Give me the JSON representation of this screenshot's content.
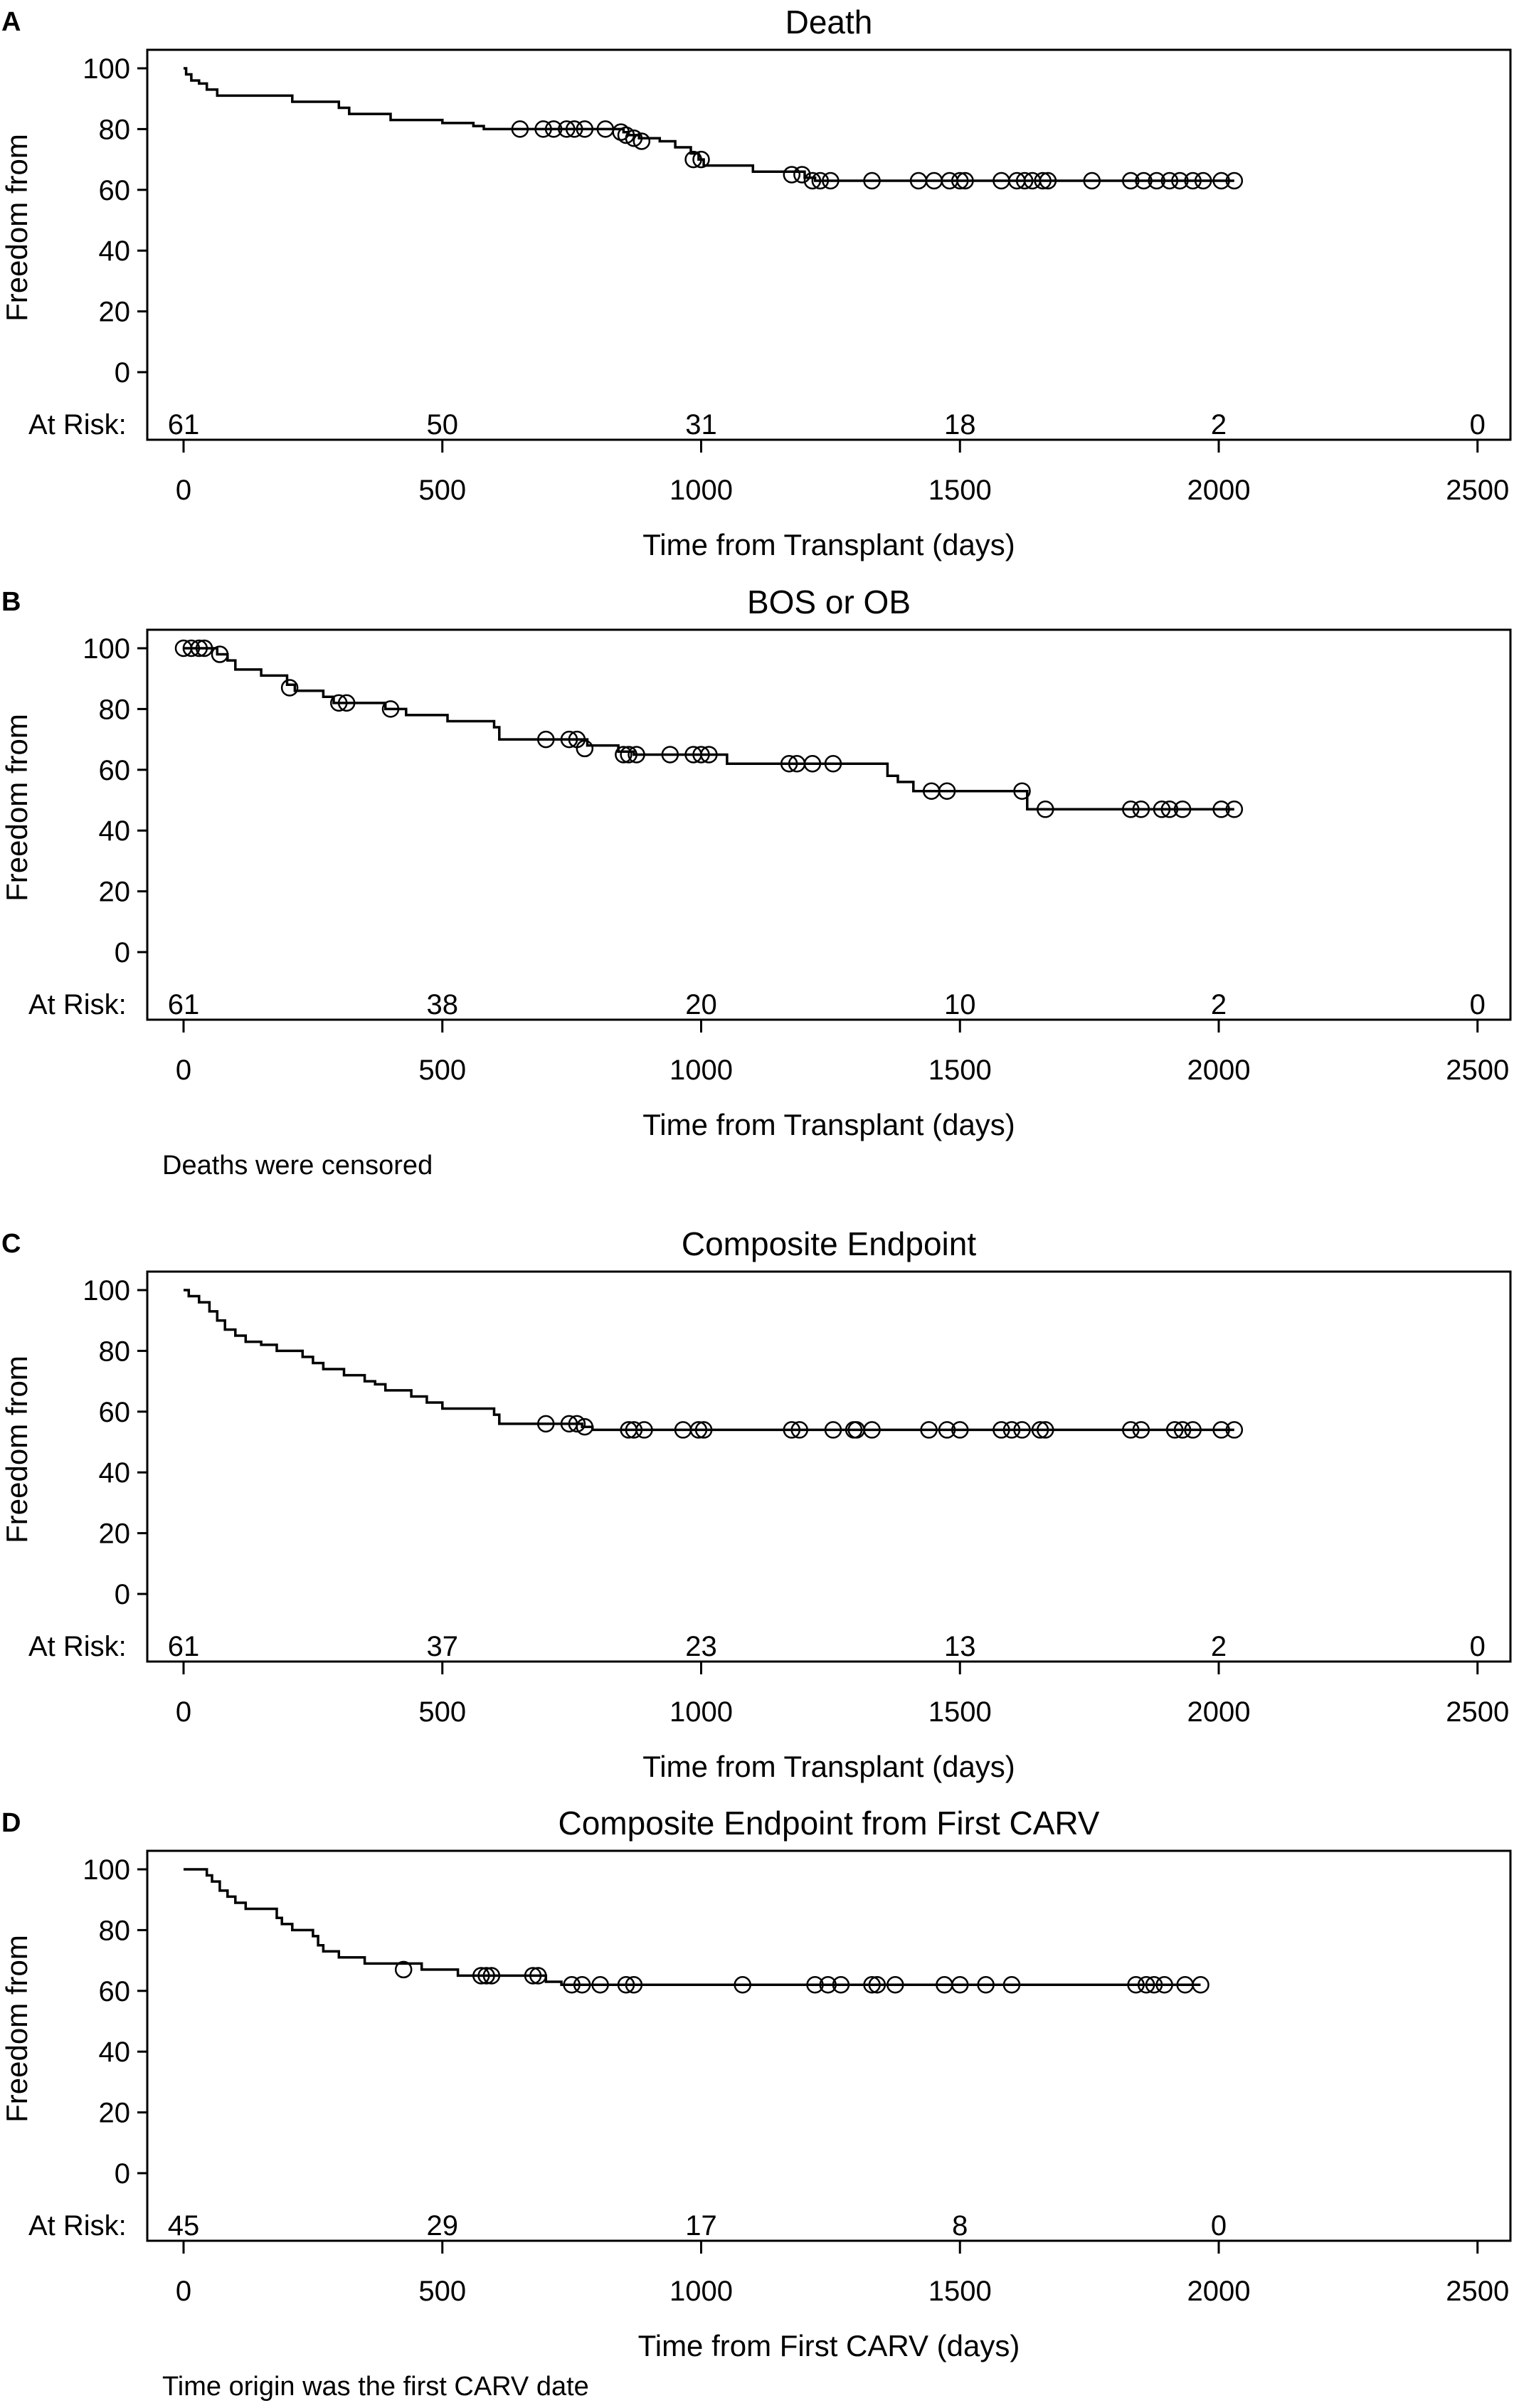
{
  "chart_data": [
    {
      "type": "line",
      "panel_letter": "A",
      "title": "Death",
      "ylabel": "Freedom from",
      "xlabel": "Time from Transplant (days)",
      "footnote": "",
      "at_risk_label": "At Risk:",
      "at_risk": [
        {
          "x": 0,
          "n": "61"
        },
        {
          "x": 500,
          "n": "50"
        },
        {
          "x": 1000,
          "n": "31"
        },
        {
          "x": 1500,
          "n": "18"
        },
        {
          "x": 2000,
          "n": "2"
        },
        {
          "x": 2500,
          "n": "0"
        }
      ],
      "xlim": [
        0,
        2500
      ],
      "ylim": [
        0,
        100
      ],
      "xticks": [
        0,
        500,
        1000,
        1500,
        2000,
        2500
      ],
      "yticks": [
        0,
        20,
        40,
        60,
        80,
        100
      ],
      "steps": [
        [
          0,
          100
        ],
        [
          5,
          98
        ],
        [
          15,
          96
        ],
        [
          30,
          95
        ],
        [
          45,
          93
        ],
        [
          65,
          91
        ],
        [
          210,
          89
        ],
        [
          300,
          87
        ],
        [
          320,
          85
        ],
        [
          400,
          83
        ],
        [
          500,
          82
        ],
        [
          560,
          81
        ],
        [
          580,
          80
        ],
        [
          640,
          80
        ],
        [
          850,
          79
        ],
        [
          860,
          78
        ],
        [
          880,
          77
        ],
        [
          920,
          76
        ],
        [
          950,
          74
        ],
        [
          980,
          72
        ],
        [
          995,
          70
        ],
        [
          1005,
          68
        ],
        [
          1100,
          66
        ],
        [
          1200,
          64
        ],
        [
          1220,
          63
        ],
        [
          2030,
          63
        ]
      ],
      "censored": [
        [
          650,
          80
        ],
        [
          695,
          80
        ],
        [
          715,
          80
        ],
        [
          740,
          80
        ],
        [
          755,
          80
        ],
        [
          775,
          80
        ],
        [
          815,
          80
        ],
        [
          845,
          79
        ],
        [
          855,
          78
        ],
        [
          870,
          77
        ],
        [
          885,
          76
        ],
        [
          985,
          70
        ],
        [
          1000,
          70
        ],
        [
          1175,
          65
        ],
        [
          1195,
          65
        ],
        [
          1215,
          63
        ],
        [
          1230,
          63
        ],
        [
          1250,
          63
        ],
        [
          1330,
          63
        ],
        [
          1420,
          63
        ],
        [
          1450,
          63
        ],
        [
          1480,
          63
        ],
        [
          1500,
          63
        ],
        [
          1510,
          63
        ],
        [
          1580,
          63
        ],
        [
          1610,
          63
        ],
        [
          1625,
          63
        ],
        [
          1640,
          63
        ],
        [
          1660,
          63
        ],
        [
          1670,
          63
        ],
        [
          1755,
          63
        ],
        [
          1830,
          63
        ],
        [
          1855,
          63
        ],
        [
          1880,
          63
        ],
        [
          1905,
          63
        ],
        [
          1925,
          63
        ],
        [
          1950,
          63
        ],
        [
          1970,
          63
        ],
        [
          2005,
          63
        ],
        [
          2030,
          63
        ]
      ]
    },
    {
      "type": "line",
      "panel_letter": "B",
      "title": "BOS or OB",
      "ylabel": "Freedom from",
      "xlabel": "Time from Transplant (days)",
      "footnote": "Deaths were censored",
      "at_risk_label": "At Risk:",
      "at_risk": [
        {
          "x": 0,
          "n": "61"
        },
        {
          "x": 500,
          "n": "38"
        },
        {
          "x": 1000,
          "n": "20"
        },
        {
          "x": 1500,
          "n": "10"
        },
        {
          "x": 2000,
          "n": "2"
        },
        {
          "x": 2500,
          "n": "0"
        }
      ],
      "xlim": [
        0,
        2500
      ],
      "ylim": [
        0,
        100
      ],
      "xticks": [
        0,
        500,
        1000,
        1500,
        2000,
        2500
      ],
      "yticks": [
        0,
        20,
        40,
        60,
        80,
        100
      ],
      "steps": [
        [
          0,
          100
        ],
        [
          65,
          98
        ],
        [
          85,
          96
        ],
        [
          100,
          93
        ],
        [
          150,
          91
        ],
        [
          200,
          88
        ],
        [
          215,
          86
        ],
        [
          270,
          84
        ],
        [
          290,
          82
        ],
        [
          390,
          80
        ],
        [
          430,
          78
        ],
        [
          510,
          76
        ],
        [
          600,
          74
        ],
        [
          610,
          70
        ],
        [
          780,
          68
        ],
        [
          840,
          66
        ],
        [
          870,
          65
        ],
        [
          1050,
          62
        ],
        [
          1360,
          58
        ],
        [
          1380,
          56
        ],
        [
          1410,
          53
        ],
        [
          1630,
          47
        ],
        [
          2030,
          47
        ]
      ],
      "censored": [
        [
          0,
          100
        ],
        [
          15,
          100
        ],
        [
          30,
          100
        ],
        [
          40,
          100
        ],
        [
          70,
          98
        ],
        [
          205,
          87
        ],
        [
          300,
          82
        ],
        [
          315,
          82
        ],
        [
          400,
          80
        ],
        [
          700,
          70
        ],
        [
          745,
          70
        ],
        [
          760,
          70
        ],
        [
          775,
          67
        ],
        [
          850,
          65
        ],
        [
          860,
          65
        ],
        [
          875,
          65
        ],
        [
          940,
          65
        ],
        [
          985,
          65
        ],
        [
          1000,
          65
        ],
        [
          1015,
          65
        ],
        [
          1170,
          62
        ],
        [
          1185,
          62
        ],
        [
          1215,
          62
        ],
        [
          1255,
          62
        ],
        [
          1445,
          53
        ],
        [
          1475,
          53
        ],
        [
          1620,
          53
        ],
        [
          1665,
          47
        ],
        [
          1830,
          47
        ],
        [
          1850,
          47
        ],
        [
          1890,
          47
        ],
        [
          1905,
          47
        ],
        [
          1930,
          47
        ],
        [
          2005,
          47
        ],
        [
          2030,
          47
        ]
      ]
    },
    {
      "type": "line",
      "panel_letter": "C",
      "title": "Composite Endpoint",
      "ylabel": "Freedom from",
      "xlabel": "Time from Transplant (days)",
      "footnote": "",
      "at_risk_label": "At Risk:",
      "at_risk": [
        {
          "x": 0,
          "n": "61"
        },
        {
          "x": 500,
          "n": "37"
        },
        {
          "x": 1000,
          "n": "23"
        },
        {
          "x": 1500,
          "n": "13"
        },
        {
          "x": 2000,
          "n": "2"
        },
        {
          "x": 2500,
          "n": "0"
        }
      ],
      "xlim": [
        0,
        2500
      ],
      "ylim": [
        0,
        100
      ],
      "xticks": [
        0,
        500,
        1000,
        1500,
        2000,
        2500
      ],
      "yticks": [
        0,
        20,
        40,
        60,
        80,
        100
      ],
      "steps": [
        [
          0,
          100
        ],
        [
          10,
          98
        ],
        [
          30,
          96
        ],
        [
          50,
          93
        ],
        [
          65,
          90
        ],
        [
          80,
          87
        ],
        [
          100,
          85
        ],
        [
          120,
          83
        ],
        [
          150,
          82
        ],
        [
          180,
          80
        ],
        [
          230,
          78
        ],
        [
          250,
          76
        ],
        [
          270,
          74
        ],
        [
          310,
          72
        ],
        [
          350,
          70
        ],
        [
          370,
          69
        ],
        [
          390,
          67
        ],
        [
          440,
          65
        ],
        [
          470,
          63
        ],
        [
          500,
          61
        ],
        [
          600,
          59
        ],
        [
          610,
          56
        ],
        [
          770,
          55
        ],
        [
          790,
          54
        ],
        [
          2030,
          54
        ]
      ],
      "censored": [
        [
          700,
          56
        ],
        [
          745,
          56
        ],
        [
          760,
          56
        ],
        [
          775,
          55
        ],
        [
          860,
          54
        ],
        [
          870,
          54
        ],
        [
          890,
          54
        ],
        [
          965,
          54
        ],
        [
          995,
          54
        ],
        [
          1005,
          54
        ],
        [
          1175,
          54
        ],
        [
          1190,
          54
        ],
        [
          1255,
          54
        ],
        [
          1295,
          54
        ],
        [
          1300,
          54
        ],
        [
          1330,
          54
        ],
        [
          1440,
          54
        ],
        [
          1475,
          54
        ],
        [
          1500,
          54
        ],
        [
          1580,
          54
        ],
        [
          1600,
          54
        ],
        [
          1620,
          54
        ],
        [
          1655,
          54
        ],
        [
          1665,
          54
        ],
        [
          1830,
          54
        ],
        [
          1850,
          54
        ],
        [
          1915,
          54
        ],
        [
          1930,
          54
        ],
        [
          1950,
          54
        ],
        [
          2005,
          54
        ],
        [
          2030,
          54
        ]
      ]
    },
    {
      "type": "line",
      "panel_letter": "D",
      "title": "Composite Endpoint from First CARV",
      "ylabel": "Freedom from",
      "xlabel": "Time from First CARV (days)",
      "footnote": "Time origin was the first CARV date",
      "at_risk_label": "At Risk:",
      "at_risk": [
        {
          "x": 0,
          "n": "45"
        },
        {
          "x": 500,
          "n": "29"
        },
        {
          "x": 1000,
          "n": "17"
        },
        {
          "x": 1500,
          "n": "8"
        },
        {
          "x": 2000,
          "n": "0"
        }
      ],
      "xlim": [
        0,
        2500
      ],
      "ylim": [
        0,
        100
      ],
      "xticks": [
        0,
        500,
        1000,
        1500,
        2000,
        2500
      ],
      "yticks": [
        0,
        20,
        40,
        60,
        80,
        100
      ],
      "steps": [
        [
          0,
          100
        ],
        [
          45,
          98
        ],
        [
          55,
          96
        ],
        [
          70,
          93
        ],
        [
          85,
          91
        ],
        [
          100,
          89
        ],
        [
          120,
          87
        ],
        [
          180,
          84
        ],
        [
          190,
          82
        ],
        [
          210,
          80
        ],
        [
          250,
          78
        ],
        [
          260,
          75
        ],
        [
          270,
          73
        ],
        [
          300,
          71
        ],
        [
          350,
          69
        ],
        [
          460,
          67
        ],
        [
          530,
          65
        ],
        [
          700,
          63
        ],
        [
          730,
          62
        ],
        [
          1965,
          62
        ]
      ],
      "censored": [
        [
          425,
          67
        ],
        [
          575,
          65
        ],
        [
          585,
          65
        ],
        [
          595,
          65
        ],
        [
          675,
          65
        ],
        [
          685,
          65
        ],
        [
          750,
          62
        ],
        [
          770,
          62
        ],
        [
          805,
          62
        ],
        [
          855,
          62
        ],
        [
          870,
          62
        ],
        [
          1080,
          62
        ],
        [
          1220,
          62
        ],
        [
          1245,
          62
        ],
        [
          1270,
          62
        ],
        [
          1330,
          62
        ],
        [
          1340,
          62
        ],
        [
          1375,
          62
        ],
        [
          1470,
          62
        ],
        [
          1500,
          62
        ],
        [
          1550,
          62
        ],
        [
          1600,
          62
        ],
        [
          1840,
          62
        ],
        [
          1860,
          62
        ],
        [
          1875,
          62
        ],
        [
          1895,
          62
        ],
        [
          1935,
          62
        ],
        [
          1965,
          62
        ]
      ]
    }
  ]
}
